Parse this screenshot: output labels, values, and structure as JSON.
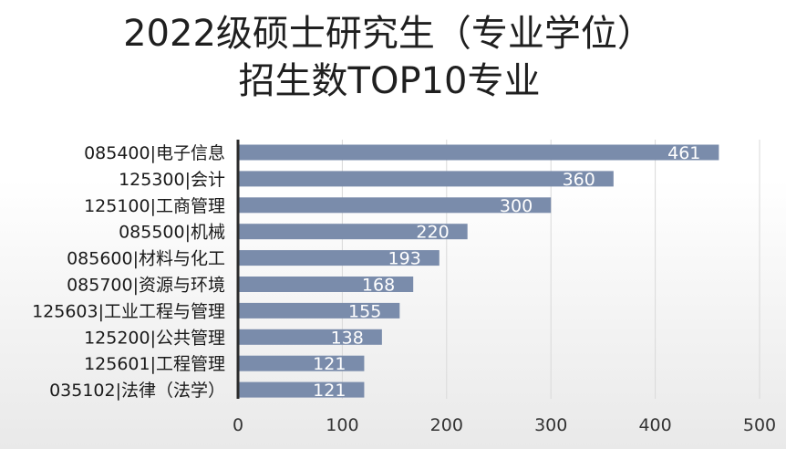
{
  "chart_data": {
    "type": "bar",
    "orientation": "horizontal",
    "title": "2022级硕士研究生（专业学位）招生数TOP10专业",
    "title_lines": [
      "2022级硕士研究生（专业学位）",
      "招生数TOP10专业"
    ],
    "categories": [
      "085400|电子信息",
      "125300|会计",
      "125100|工商管理",
      "085500|机械",
      "085600|材料与化工",
      "085700|资源与环境",
      "125603|工业工程与管理",
      "125200|公共管理",
      "125601|工程管理",
      "035102|法律（法学）"
    ],
    "values": [
      461,
      360,
      300,
      220,
      193,
      168,
      155,
      138,
      121,
      121
    ],
    "xlabel": "",
    "ylabel": "",
    "xlim": [
      0,
      500
    ],
    "xticks": [
      0,
      100,
      200,
      300,
      400,
      500
    ],
    "grid": true,
    "legend": "none",
    "bar_color": "#7a8cab",
    "data_label_color": "#ffffff"
  }
}
